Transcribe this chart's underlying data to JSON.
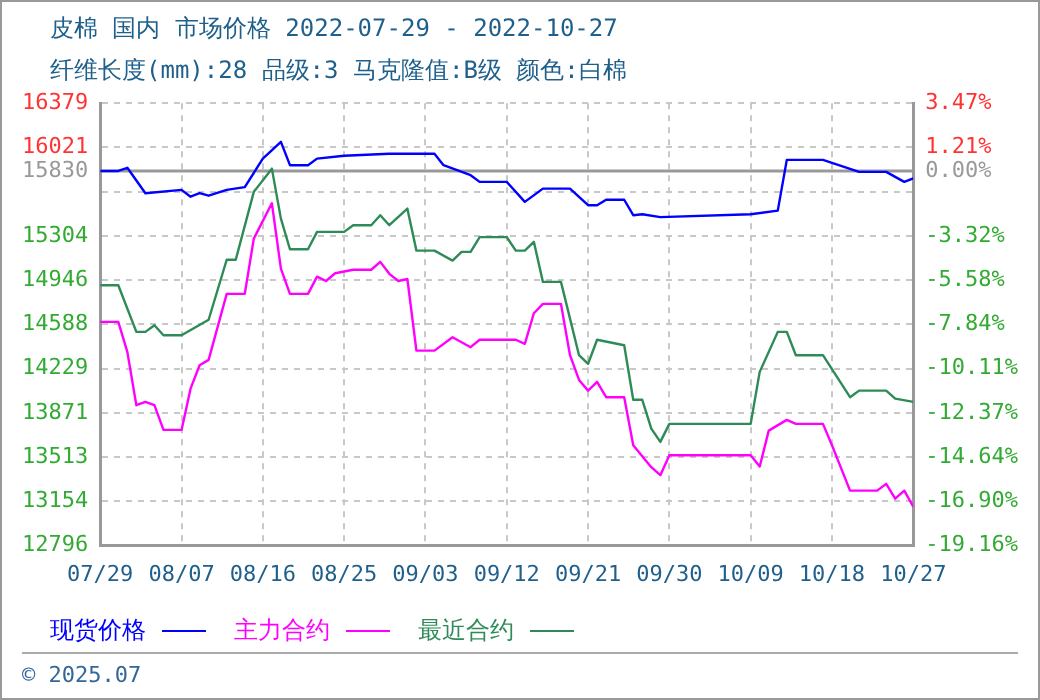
{
  "chart_data": {
    "type": "line",
    "title": "皮棉 国内 市场价格 2022-07-29 - 2022-10-27",
    "subtitle": "纤维长度(mm):28 品级:3 马克隆值:B级 颜色:白棉",
    "xlim": [
      "2022-07-29",
      "2022-10-27"
    ],
    "xticks": [
      {
        "value": "2022-07-29",
        "label": "07/29"
      },
      {
        "value": "2022-08-07",
        "label": "08/07"
      },
      {
        "value": "2022-08-16",
        "label": "08/16"
      },
      {
        "value": "2022-08-25",
        "label": "08/25"
      },
      {
        "value": "2022-09-03",
        "label": "09/03"
      },
      {
        "value": "2022-09-12",
        "label": "09/12"
      },
      {
        "value": "2022-09-21",
        "label": "09/21"
      },
      {
        "value": "2022-09-30",
        "label": "09/30"
      },
      {
        "value": "2022-10-09",
        "label": "10/09"
      },
      {
        "value": "2022-10-18",
        "label": "10/18"
      },
      {
        "value": "2022-10-27",
        "label": "10/27"
      }
    ],
    "ylim": [
      12796,
      16379
    ],
    "yticks": [
      12796,
      13154,
      13513,
      13871,
      14229,
      14588,
      14946,
      15304,
      {
        "value": 15663,
        "label": null
      },
      15830,
      16021,
      16379
    ],
    "y2lim": [
      -19.16,
      3.47
    ],
    "y2ticks": [
      {
        "value": -19.16,
        "label": "-19.16%"
      },
      {
        "value": -16.9,
        "label": "-16.90%"
      },
      {
        "value": -14.64,
        "label": "-14.64%"
      },
      {
        "value": -12.37,
        "label": "-12.37%"
      },
      {
        "value": -10.11,
        "label": "-10.11%"
      },
      {
        "value": -7.84,
        "label": "-7.84%"
      },
      {
        "value": -5.58,
        "label": "-5.58%"
      },
      {
        "value": -3.32,
        "label": "-3.32%"
      },
      {
        "value": -1.05,
        "label": null
      },
      {
        "value": 0,
        "label": "0.00%"
      },
      {
        "value": 1.21,
        "label": "1.21%"
      },
      {
        "value": 3.47,
        "label": "3.47%"
      }
    ],
    "grid": true,
    "legend": "bottom",
    "marker": "none",
    "line_style": "solid",
    "ref_lines": [
      {
        "axis": "y",
        "value": 15830,
        "color": "#999999"
      }
    ],
    "annotations": [
      "© 2025.07"
    ],
    "series": [
      {
        "name": "现货价格",
        "color": "#0000ff",
        "x": [
          "2022-07-29",
          "2022-07-31",
          "2022-08-01",
          "2022-08-03",
          "2022-08-07",
          "2022-08-08",
          "2022-08-09",
          "2022-08-10",
          "2022-08-12",
          "2022-08-14",
          "2022-08-16",
          "2022-08-18",
          "2022-08-19",
          "2022-08-21",
          "2022-08-22",
          "2022-08-25",
          "2022-08-30",
          "2022-09-04",
          "2022-09-05",
          "2022-09-08",
          "2022-09-09",
          "2022-09-12",
          "2022-09-14",
          "2022-09-16",
          "2022-09-19",
          "2022-09-21",
          "2022-09-22",
          "2022-09-23",
          "2022-09-25",
          "2022-09-26",
          "2022-09-27",
          "2022-09-29",
          "2022-10-09",
          "2022-10-12",
          "2022-10-13",
          "2022-10-17",
          "2022-10-21",
          "2022-10-24",
          "2022-10-26",
          "2022-10-27"
        ],
        "values": [
          15830,
          15830,
          15856,
          15650,
          15677,
          15622,
          15650,
          15630,
          15677,
          15699,
          15930,
          16066,
          15877,
          15877,
          15930,
          15953,
          15969,
          15969,
          15877,
          15796,
          15742,
          15742,
          15580,
          15687,
          15687,
          15553,
          15553,
          15597,
          15597,
          15472,
          15480,
          15456,
          15480,
          15509,
          15920,
          15920,
          15823,
          15823,
          15742,
          15770
        ]
      },
      {
        "name": "主力合约",
        "color": "#ff00ff",
        "x": [
          "2022-07-29",
          "2022-07-31",
          "2022-08-01",
          "2022-08-02",
          "2022-08-03",
          "2022-08-04",
          "2022-08-05",
          "2022-08-07",
          "2022-08-08",
          "2022-08-09",
          "2022-08-10",
          "2022-08-12",
          "2022-08-14",
          "2022-08-15",
          "2022-08-17",
          "2022-08-18",
          "2022-08-19",
          "2022-08-21",
          "2022-08-22",
          "2022-08-23",
          "2022-08-24",
          "2022-08-26",
          "2022-08-28",
          "2022-08-29",
          "2022-08-30",
          "2022-08-31",
          "2022-09-01",
          "2022-09-02",
          "2022-09-04",
          "2022-09-06",
          "2022-09-08",
          "2022-09-09",
          "2022-09-13",
          "2022-09-14",
          "2022-09-15",
          "2022-09-16",
          "2022-09-18",
          "2022-09-19",
          "2022-09-20",
          "2022-09-21",
          "2022-09-22",
          "2022-09-23",
          "2022-09-25",
          "2022-09-26",
          "2022-09-28",
          "2022-09-29",
          "2022-09-30",
          "2022-10-09",
          "2022-10-10",
          "2022-10-11",
          "2022-10-13",
          "2022-10-14",
          "2022-10-17",
          "2022-10-18",
          "2022-10-20",
          "2022-10-23",
          "2022-10-24",
          "2022-10-25",
          "2022-10-26",
          "2022-10-27"
        ],
        "values": [
          14608,
          14608,
          14365,
          13933,
          13960,
          13933,
          13733,
          13733,
          14067,
          14257,
          14300,
          14835,
          14835,
          15282,
          15569,
          15039,
          14835,
          14835,
          14974,
          14939,
          15002,
          15030,
          15030,
          15094,
          14997,
          14939,
          14955,
          14375,
          14375,
          14483,
          14403,
          14463,
          14463,
          14430,
          14678,
          14754,
          14754,
          14338,
          14138,
          14051,
          14122,
          13998,
          13998,
          13609,
          13431,
          13366,
          13528,
          13528,
          13436,
          13727,
          13814,
          13782,
          13782,
          13609,
          13241,
          13241,
          13296,
          13176,
          13241,
          13111
        ]
      },
      {
        "name": "最近合约",
        "color": "#2e8b57",
        "x": [
          "2022-07-29",
          "2022-07-31",
          "2022-08-02",
          "2022-08-03",
          "2022-08-04",
          "2022-08-05",
          "2022-08-07",
          "2022-08-10",
          "2022-08-12",
          "2022-08-13",
          "2022-08-15",
          "2022-08-17",
          "2022-08-18",
          "2022-08-19",
          "2022-08-21",
          "2022-08-22",
          "2022-08-25",
          "2022-08-26",
          "2022-08-28",
          "2022-08-29",
          "2022-08-30",
          "2022-09-01",
          "2022-09-02",
          "2022-09-04",
          "2022-09-06",
          "2022-09-07",
          "2022-09-08",
          "2022-09-09",
          "2022-09-12",
          "2022-09-13",
          "2022-09-14",
          "2022-09-15",
          "2022-09-16",
          "2022-09-18",
          "2022-09-20",
          "2022-09-21",
          "2022-09-22",
          "2022-09-25",
          "2022-09-26",
          "2022-09-27",
          "2022-09-28",
          "2022-09-29",
          "2022-09-30",
          "2022-10-09",
          "2022-10-10",
          "2022-10-12",
          "2022-10-13",
          "2022-10-14",
          "2022-10-17",
          "2022-10-20",
          "2022-10-21",
          "2022-10-24",
          "2022-10-25",
          "2022-10-27"
        ],
        "values": [
          14905,
          14905,
          14527,
          14527,
          14581,
          14500,
          14500,
          14625,
          15111,
          15111,
          15661,
          15849,
          15444,
          15196,
          15196,
          15337,
          15337,
          15391,
          15391,
          15472,
          15391,
          15525,
          15185,
          15185,
          15104,
          15175,
          15175,
          15294,
          15294,
          15185,
          15185,
          15256,
          14932,
          14932,
          14338,
          14268,
          14463,
          14419,
          13977,
          13977,
          13743,
          13636,
          13782,
          13782,
          14203,
          14527,
          14527,
          14338,
          14338,
          13998,
          14051,
          14051,
          13986,
          13960
        ]
      }
    ]
  }
}
